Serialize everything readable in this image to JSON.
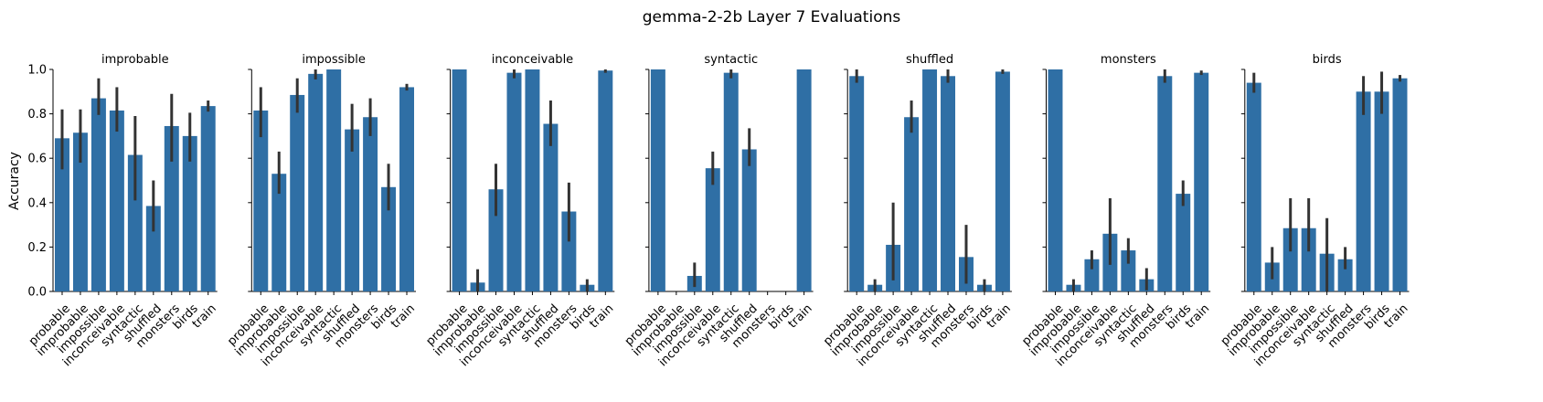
{
  "figure": {
    "title": "gemma-2-2b Layer 7 Evaluations",
    "ylabel": "Accuracy"
  },
  "chart_data": {
    "type": "bar",
    "title": "gemma-2-2b Layer 7 Evaluations",
    "ylabel": "Accuracy",
    "ylim": [
      0,
      1.0
    ],
    "yticks": [
      "0.0",
      "0.2",
      "0.4",
      "0.6",
      "0.8",
      "1.0"
    ],
    "bar_color": "#2f6fa5",
    "error_color": "#333333",
    "categories": [
      "probable",
      "improbable",
      "impossible",
      "inconceivable",
      "syntactic",
      "shuffled",
      "monsters",
      "birds",
      "train"
    ],
    "panels": [
      {
        "title": "improbable",
        "values": [
          0.69,
          0.715,
          0.87,
          0.815,
          0.615,
          0.385,
          0.745,
          0.7,
          0.835
        ],
        "err_low": [
          0.55,
          0.58,
          0.795,
          0.72,
          0.41,
          0.27,
          0.585,
          0.585,
          0.81
        ],
        "err_high": [
          0.82,
          0.82,
          0.96,
          0.92,
          0.79,
          0.5,
          0.89,
          0.805,
          0.86
        ]
      },
      {
        "title": "impossible",
        "values": [
          0.815,
          0.53,
          0.885,
          0.98,
          1.0,
          0.73,
          0.785,
          0.47,
          0.92
        ],
        "err_low": [
          0.695,
          0.44,
          0.805,
          0.955,
          1.0,
          0.63,
          0.7,
          0.365,
          0.905
        ],
        "err_high": [
          0.92,
          0.63,
          0.96,
          1.0,
          1.0,
          0.845,
          0.87,
          0.575,
          0.935
        ]
      },
      {
        "title": "inconceivable",
        "values": [
          1.0,
          0.04,
          0.46,
          0.985,
          1.0,
          0.755,
          0.36,
          0.03,
          0.995
        ],
        "err_low": [
          1.0,
          0.0,
          0.34,
          0.96,
          1.0,
          0.655,
          0.225,
          0.0,
          0.985
        ],
        "err_high": [
          1.0,
          0.1,
          0.575,
          1.0,
          1.0,
          0.86,
          0.49,
          0.055,
          1.0
        ]
      },
      {
        "title": "syntactic",
        "values": [
          1.0,
          0.0,
          0.07,
          0.555,
          0.985,
          0.64,
          0.0,
          0.0,
          1.0
        ],
        "err_low": [
          1.0,
          0.0,
          0.02,
          0.48,
          0.96,
          0.565,
          0.0,
          0.0,
          1.0
        ],
        "err_high": [
          1.0,
          0.0,
          0.13,
          0.63,
          1.0,
          0.735,
          0.0,
          0.0,
          1.0
        ]
      },
      {
        "title": "shuffled",
        "values": [
          0.97,
          0.03,
          0.21,
          0.785,
          1.0,
          0.97,
          0.155,
          0.03,
          0.99
        ],
        "err_low": [
          0.94,
          0.0,
          0.05,
          0.715,
          1.0,
          0.94,
          0.035,
          0.0,
          0.98
        ],
        "err_high": [
          1.0,
          0.055,
          0.4,
          0.86,
          1.0,
          1.0,
          0.3,
          0.055,
          1.0
        ]
      },
      {
        "title": "monsters",
        "values": [
          1.0,
          0.03,
          0.145,
          0.26,
          0.185,
          0.055,
          0.97,
          0.44,
          0.985
        ],
        "err_low": [
          1.0,
          0.0,
          0.1,
          0.12,
          0.125,
          0.005,
          0.94,
          0.385,
          0.975
        ],
        "err_high": [
          1.0,
          0.055,
          0.185,
          0.42,
          0.24,
          0.105,
          1.0,
          0.5,
          0.995
        ]
      },
      {
        "title": "birds",
        "values": [
          0.94,
          0.13,
          0.285,
          0.285,
          0.17,
          0.145,
          0.9,
          0.9,
          0.96
        ],
        "err_low": [
          0.895,
          0.055,
          0.18,
          0.18,
          0.0,
          0.1,
          0.795,
          0.8,
          0.945
        ],
        "err_high": [
          0.985,
          0.2,
          0.42,
          0.42,
          0.33,
          0.2,
          0.97,
          0.99,
          0.975
        ]
      }
    ]
  }
}
